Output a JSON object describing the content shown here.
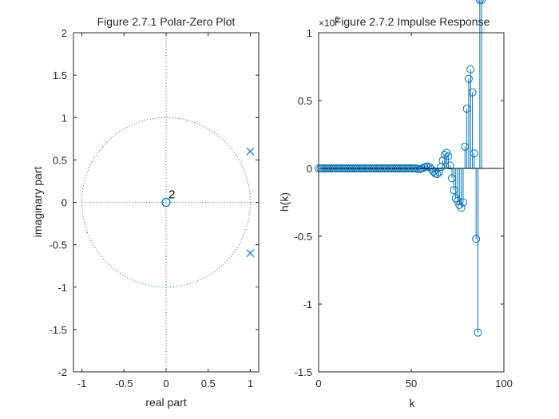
{
  "charts": [
    {
      "id": "pz",
      "type": "scatter",
      "title": "Figure 2.7.1 Polar-Zero Plot",
      "xlabel": "real part",
      "ylabel": "imaginary part",
      "xlim": [
        -1.1,
        1.1
      ],
      "ylim": [
        -2,
        2
      ],
      "xticks": [
        -1,
        -0.5,
        0,
        0.5,
        1
      ],
      "xtick_labels": [
        "-1",
        "-0.5",
        "0",
        "0.5",
        "1"
      ],
      "yticks": [
        -2,
        -1.5,
        -1,
        -0.5,
        0,
        0.5,
        1,
        1.5,
        2
      ],
      "ytick_labels": [
        "-2",
        "-1.5",
        "-1",
        "-0.5",
        "0",
        "0.5",
        "1",
        "1.5",
        "2"
      ],
      "unit_circle": true,
      "zeros": [
        {
          "re": 0,
          "im": 0,
          "multiplicity_label": "2"
        }
      ],
      "poles": [
        {
          "re": 1.0,
          "im": 0.6
        },
        {
          "re": 1.0,
          "im": -0.6
        }
      ],
      "grid": false
    },
    {
      "id": "ir",
      "type": "stem",
      "title": "Figure 2.7.2 Impulse Response",
      "exponent_label": "×10",
      "exponent_power": "6",
      "xlabel": "k",
      "ylabel": "h(k)",
      "xlim": [
        0,
        100
      ],
      "ylim": [
        -1.5,
        1
      ],
      "xticks": [
        0,
        50,
        100
      ],
      "xtick_labels": [
        "0",
        "50",
        "100"
      ],
      "yticks": [
        -1.5,
        -1,
        -0.5,
        0,
        0.5,
        1
      ],
      "ytick_labels": [
        "-1.5",
        "-1",
        "-0.5",
        "0",
        "0.5",
        "1"
      ],
      "k": [
        0,
        1,
        2,
        3,
        4,
        5,
        6,
        7,
        8,
        9,
        10,
        11,
        12,
        13,
        14,
        15,
        16,
        17,
        18,
        19,
        20,
        21,
        22,
        23,
        24,
        25,
        26,
        27,
        28,
        29,
        30,
        31,
        32,
        33,
        34,
        35,
        36,
        37,
        38,
        39,
        40,
        41,
        42,
        43,
        44,
        45,
        46,
        47,
        48,
        49,
        50,
        51,
        52,
        53,
        54,
        55,
        56,
        57,
        58,
        59,
        60,
        61,
        62,
        63,
        64,
        65,
        66,
        67,
        68,
        69,
        70,
        71,
        72,
        73,
        74,
        75,
        76,
        77,
        78,
        79,
        80,
        81,
        82,
        83,
        84,
        85,
        86,
        87,
        88
      ],
      "h": [
        0,
        0,
        0,
        0,
        0,
        0,
        0,
        0,
        0,
        0,
        0,
        0,
        0,
        0,
        0,
        0,
        0,
        0,
        0,
        0,
        0,
        0,
        0,
        0,
        0,
        0,
        0,
        0,
        0,
        0,
        0,
        0,
        0,
        0,
        0,
        0,
        0,
        0,
        0,
        0,
        0,
        0,
        0,
        0,
        0,
        0,
        0,
        0,
        0,
        0,
        0,
        0,
        0,
        -0.002,
        -0.004,
        -0.004,
        0,
        0.008,
        0.013,
        0.014,
        0.008,
        -0.006,
        -0.023,
        -0.038,
        -0.042,
        -0.027,
        0.01,
        0.058,
        0.1,
        0.115,
        0.09,
        0.021,
        -0.072,
        -0.16,
        -0.22,
        -0.24,
        -0.27,
        -0.29,
        -0.25,
        0.16,
        0.44,
        0.66,
        0.73,
        0.56,
        0.11,
        -0.52,
        -1.21
      ],
      "grid": false
    }
  ]
}
